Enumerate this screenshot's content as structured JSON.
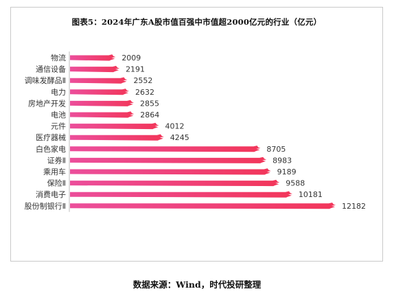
{
  "chart_data": {
    "type": "bar",
    "orientation": "horizontal",
    "title": "图表5：2024年广东A股市值百强中市值超2000亿元的行业（亿元）",
    "categories": [
      "物流",
      "通信设备",
      "调味发酵品Ⅱ",
      "电力",
      "房地产开发",
      "电池",
      "元件",
      "医疗器械",
      "白色家电",
      "证券Ⅱ",
      "乘用车",
      "保险Ⅱ",
      "消费电子",
      "股份制银行Ⅱ"
    ],
    "values": [
      2009,
      2191,
      2552,
      2632,
      2855,
      2864,
      4012,
      4245,
      8705,
      8983,
      9189,
      9588,
      10181,
      12182
    ],
    "xlabel": "",
    "ylabel": "",
    "xlim": [
      0,
      14000
    ],
    "grid": false,
    "legend": "none",
    "colors": {
      "bar_start": "#ec4e9b",
      "bar_end": "#f2365a",
      "label": "#333333",
      "axis": "#bfbfbf"
    }
  },
  "footer": {
    "source": "数据来源：Wind，时代投研整理"
  }
}
